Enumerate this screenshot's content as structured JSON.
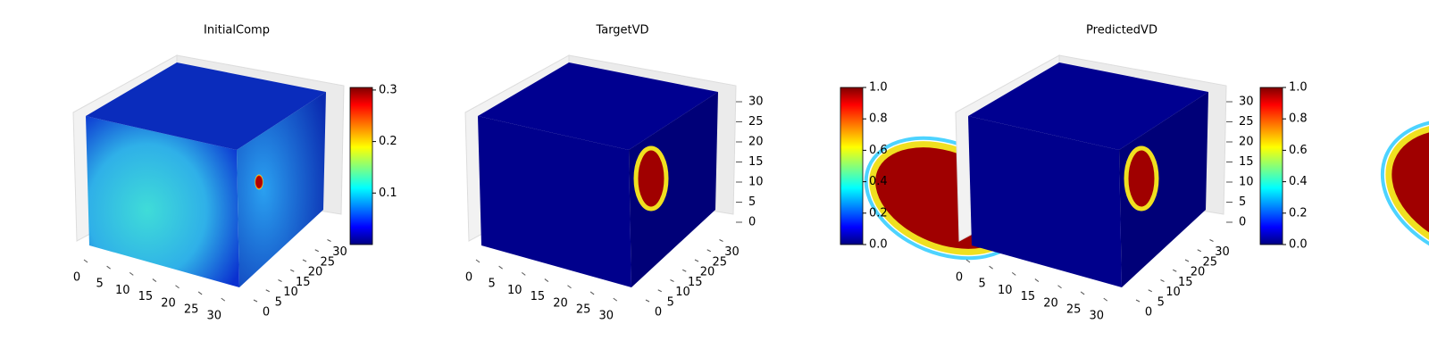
{
  "chart_data": [
    {
      "type": "voxel",
      "title": "InitialComp",
      "xlim": [
        0,
        32
      ],
      "xticks": [
        0,
        5,
        10,
        15,
        20,
        25,
        30
      ],
      "ylim": [
        0,
        32
      ],
      "yticks": [
        0,
        5,
        10,
        15,
        20,
        25,
        30
      ],
      "zlim": [
        0,
        32
      ],
      "clim": [
        0,
        0.305
      ],
      "cticks": [
        0.1,
        0.2,
        0.3
      ]
    },
    {
      "type": "voxel",
      "title": "TargetVD",
      "xlim": [
        0,
        32
      ],
      "xticks": [
        0,
        5,
        10,
        15,
        20,
        25,
        30
      ],
      "ylim": [
        0,
        32
      ],
      "yticks": [
        0,
        5,
        10,
        15,
        20,
        25,
        30
      ],
      "zlim": [
        0,
        32
      ],
      "zticks": [
        0,
        5,
        10,
        15,
        20,
        25,
        30
      ],
      "clim": [
        0,
        1
      ],
      "cticks": [
        {
          "value": 0,
          "label": "0.0"
        },
        0.2,
        0.4,
        0.6,
        0.8,
        {
          "value": 1,
          "label": "1.0"
        }
      ]
    },
    {
      "type": "voxel",
      "title": "PredictedVD",
      "xlim": [
        0,
        32
      ],
      "xticks": [
        0,
        5,
        10,
        15,
        20,
        25,
        30
      ],
      "ylim": [
        0,
        32
      ],
      "yticks": [
        0,
        5,
        10,
        15,
        20,
        25,
        30
      ],
      "zlim": [
        0,
        32
      ],
      "zticks": [
        0,
        5,
        10,
        15,
        20,
        25,
        30
      ],
      "clim": [
        0,
        1
      ],
      "cticks": [
        {
          "value": 0,
          "label": "0.0"
        },
        0.2,
        0.4,
        0.6,
        0.8,
        {
          "value": 1,
          "label": "1.0"
        }
      ]
    }
  ]
}
